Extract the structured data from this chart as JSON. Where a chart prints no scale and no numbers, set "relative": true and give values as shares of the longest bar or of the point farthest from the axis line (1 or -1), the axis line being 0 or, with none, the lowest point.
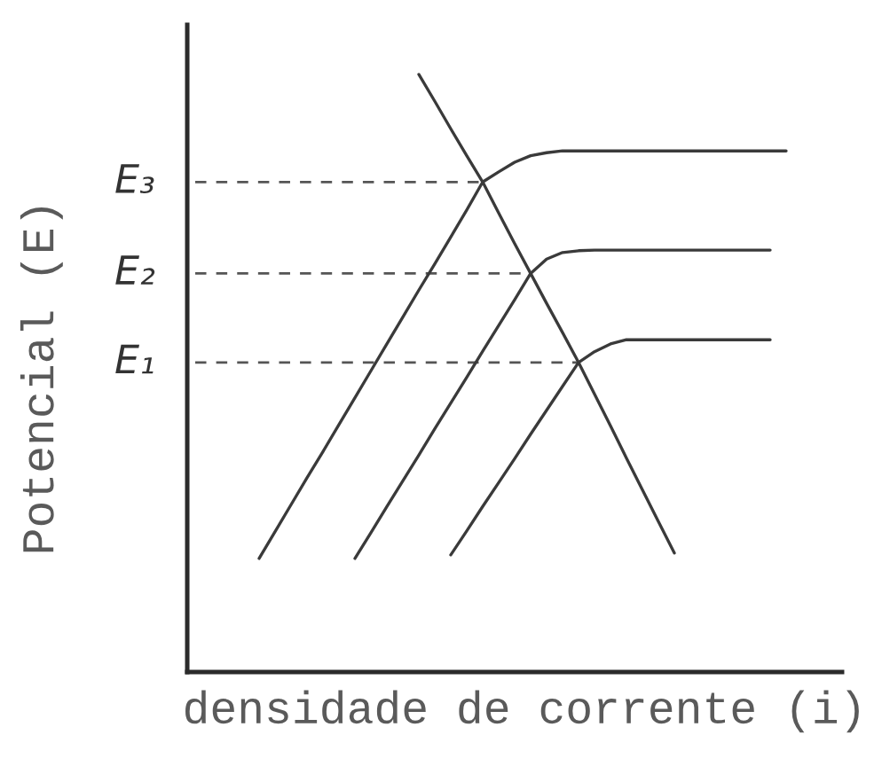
{
  "chart_data": {
    "type": "line",
    "relative": true,
    "xlabel": "densidade de corrente (i)",
    "ylabel": "Potencial (E)",
    "categories": [
      null,
      null,
      null,
      null,
      null,
      null,
      null,
      null,
      null,
      null,
      null,
      null,
      null,
      null,
      null,
      null,
      null,
      null,
      null,
      null,
      null,
      null,
      null,
      null,
      null,
      null,
      null,
      null,
      null,
      null,
      null,
      null,
      null,
      null,
      null,
      null,
      null,
      null,
      null,
      null,
      null
    ],
    "series": [
      {
        "name": "E₃",
        "color": "#555555",
        "line_style": "dashed",
        "values": [
          0.82,
          0.82,
          0.82,
          0.82,
          0.82,
          0.82,
          0.82,
          0.82,
          0.82,
          0.82,
          0.82,
          0.82,
          0.82,
          0.82,
          0.82,
          0.82,
          0.82,
          0.82,
          0.82,
          null,
          null,
          null,
          null,
          null,
          null,
          null,
          null,
          null,
          null,
          null,
          null,
          null,
          null,
          null,
          null,
          null,
          null,
          null,
          null,
          null,
          null
        ]
      },
      {
        "name": "E₂",
        "color": "#555555",
        "line_style": "dashed",
        "values": [
          0.667,
          0.667,
          0.667,
          0.667,
          0.667,
          0.667,
          0.667,
          0.667,
          0.667,
          0.667,
          0.667,
          0.667,
          0.667,
          0.667,
          0.667,
          0.667,
          0.667,
          0.667,
          0.667,
          0.667,
          0.667,
          0.667,
          null,
          null,
          null,
          null,
          null,
          null,
          null,
          null,
          null,
          null,
          null,
          null,
          null,
          null,
          null,
          null,
          null,
          null,
          null
        ]
      },
      {
        "name": "E₁",
        "color": "#555555",
        "line_style": "dashed",
        "values": [
          0.518,
          0.518,
          0.518,
          0.518,
          0.518,
          0.518,
          0.518,
          0.518,
          0.518,
          0.518,
          0.518,
          0.518,
          0.518,
          0.518,
          0.518,
          0.518,
          0.518,
          0.518,
          0.518,
          0.518,
          0.518,
          0.518,
          0.518,
          0.518,
          0.518,
          null,
          null,
          null,
          null,
          null,
          null,
          null,
          null,
          null,
          null,
          null,
          null,
          null,
          null,
          null,
          null
        ]
      },
      {
        "color": "#3a3a3a",
        "line_style": "solid",
        "values": [
          null,
          null,
          null,
          null,
          0.19,
          0.235,
          0.28,
          0.325,
          0.369,
          0.414,
          0.459,
          0.504,
          0.549,
          0.594,
          0.639,
          0.683,
          0.728,
          0.773,
          0.82,
          0.837,
          0.853,
          0.864,
          0.869,
          0.872,
          0.872,
          0.872,
          0.872,
          0.872,
          0.872,
          0.872,
          0.872,
          0.872,
          0.872,
          0.872,
          0.872,
          0.872,
          0.872,
          0.872,
          null,
          null,
          null
        ]
      },
      {
        "color": "#3a3a3a",
        "line_style": "solid",
        "values": [
          null,
          null,
          null,
          null,
          null,
          null,
          null,
          null,
          null,
          null,
          0.19,
          0.233,
          0.277,
          0.32,
          0.363,
          0.407,
          0.45,
          0.493,
          0.537,
          0.58,
          0.623,
          0.667,
          0.691,
          0.702,
          0.705,
          0.706,
          0.706,
          0.706,
          0.706,
          0.706,
          0.706,
          0.706,
          0.706,
          0.706,
          0.706,
          0.706,
          0.706,
          null,
          null,
          null,
          null
        ]
      },
      {
        "color": "#3a3a3a",
        "line_style": "solid",
        "values": [
          null,
          null,
          null,
          null,
          null,
          null,
          null,
          null,
          null,
          null,
          null,
          null,
          null,
          null,
          null,
          null,
          0.196,
          0.236,
          0.277,
          0.317,
          0.357,
          0.398,
          0.438,
          0.478,
          0.518,
          0.536,
          0.549,
          0.556,
          0.556,
          0.556,
          0.556,
          0.556,
          0.556,
          0.556,
          0.556,
          0.556,
          0.556,
          null,
          null,
          null,
          null
        ]
      },
      {
        "color": "#3a3a3a",
        "line_style": "solid",
        "values": [
          null,
          null,
          null,
          null,
          null,
          null,
          null,
          null,
          null,
          null,
          null,
          null,
          null,
          null,
          1.0,
          0.955,
          0.909,
          0.864,
          0.82,
          0.768,
          0.717,
          0.667,
          0.617,
          0.568,
          0.518,
          0.465,
          0.412,
          0.358,
          0.305,
          0.252,
          0.199,
          null,
          null,
          null,
          null,
          null,
          null,
          null,
          null,
          null,
          null
        ]
      }
    ]
  }
}
